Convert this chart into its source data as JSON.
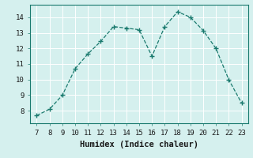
{
  "x": [
    7,
    8,
    9,
    10,
    11,
    12,
    13,
    14,
    15,
    16,
    17,
    18,
    19,
    20,
    21,
    22,
    23
  ],
  "y": [
    7.7,
    8.1,
    9.0,
    10.7,
    11.65,
    12.45,
    13.4,
    13.3,
    13.2,
    11.5,
    13.4,
    14.35,
    14.0,
    13.15,
    12.0,
    10.0,
    8.5
  ],
  "line_color": "#1a7a6e",
  "marker": "+",
  "marker_color": "#1a7a6e",
  "xlabel": "Humidex (Indice chaleur)",
  "xlim": [
    6.5,
    23.5
  ],
  "ylim": [
    7.2,
    14.8
  ],
  "yticks": [
    8,
    9,
    10,
    11,
    12,
    13,
    14
  ],
  "xticks": [
    7,
    8,
    9,
    10,
    11,
    12,
    13,
    14,
    15,
    16,
    17,
    18,
    19,
    20,
    21,
    22,
    23
  ],
  "bg_color": "#d5f0ee",
  "grid_color": "#c0dede",
  "spine_color": "#1a7a6e",
  "tick_fontsize": 6.5,
  "label_fontsize": 7.5
}
